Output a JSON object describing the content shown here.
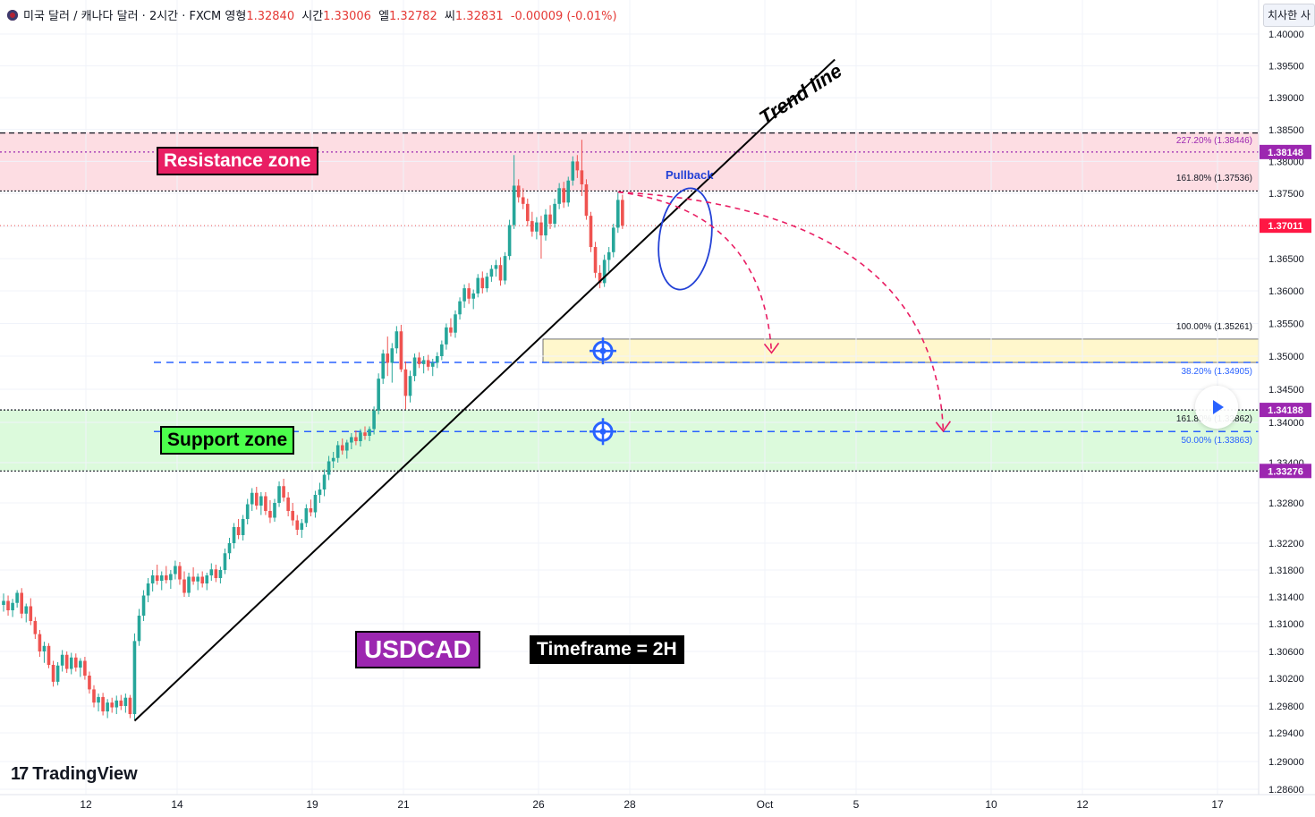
{
  "header": {
    "title": "미국 달러 / 캐나다 달러 · 2시간 · FXCM",
    "open_label": "영형",
    "open": "1.32840",
    "high_label": "시간",
    "high": "1.33006",
    "low_label": "엘",
    "low": "1.32782",
    "close_label": "씨",
    "close": "1.32831",
    "change": "-0.00009 (-0.01%)"
  },
  "corner_label": "치사한 사",
  "logo_text": "TradingView",
  "labels": {
    "resistance": "Resistance zone",
    "support": "Support zone",
    "symbol": "USDCAD",
    "timeframe": "Timeframe = 2H",
    "trend": "Trend line",
    "pullback": "Pullback"
  },
  "colors": {
    "up": "#26a69a",
    "down": "#ef5350",
    "resistance_fill": "#fddde3",
    "support_fill": "#dcfadc",
    "target_fill": "#fff7cc",
    "projection": "#e91e63",
    "accent": "#2962ff",
    "fib_purple": "#9c27b0",
    "label_purple": "#9c27b0",
    "label_red": "#ff1744"
  },
  "chart_data": {
    "type": "candlestick",
    "symbol": "USDCAD",
    "timeframe": "2H",
    "x_ticks": [
      "12",
      "14",
      "19",
      "21",
      "26",
      "28",
      "Oct",
      "5",
      "10",
      "12",
      "17"
    ],
    "y_ticks": [
      "1.40000",
      "1.39500",
      "1.39000",
      "1.38500",
      "1.38000",
      "1.37500",
      "1.37000",
      "1.36500",
      "1.36000",
      "1.35500",
      "1.35000",
      "1.34500",
      "1.34000",
      "1.33400",
      "1.32800",
      "1.32200",
      "1.31800",
      "1.31400",
      "1.31000",
      "1.30600",
      "1.30200",
      "1.29800",
      "1.29400",
      "1.29000",
      "1.28600"
    ],
    "price_labels": [
      {
        "price": 1.38148,
        "text": "1.38148",
        "color": "#9c27b0"
      },
      {
        "price": 1.37011,
        "text": "1.37011",
        "color": "#ff1744"
      },
      {
        "price": 1.34188,
        "text": "1.34188",
        "color": "#9c27b0"
      },
      {
        "price": 1.33276,
        "text": "1.33276",
        "color": "#9c27b0"
      }
    ],
    "zones": [
      {
        "name": "Resistance zone",
        "top": 1.3846,
        "bottom": 1.3754
      },
      {
        "name": "Support zone",
        "top": 1.34188,
        "bottom": 1.33276
      }
    ],
    "fib_levels": [
      {
        "text": "227.20% (1.38446)",
        "price": 1.38446,
        "color": "#9c27b0"
      },
      {
        "text": "161.80% (1.37536)",
        "price": 1.37536,
        "color": "#131722"
      },
      {
        "text": "100.00% (1.35261)",
        "price": 1.35261,
        "color": "#131722"
      },
      {
        "text": "38.20% (1.34905)",
        "price": 1.34905,
        "color": "#2962ff"
      },
      {
        "text": "161.80% (1.33862)",
        "price": 1.33862,
        "color": "#131722"
      },
      {
        "text": "50.00% (1.33863)",
        "price": 1.33863,
        "color": "#2962ff"
      }
    ],
    "candles": [
      [
        1.3128,
        1.3145,
        1.3118,
        1.3134
      ],
      [
        1.3134,
        1.3142,
        1.3112,
        1.312
      ],
      [
        1.312,
        1.3137,
        1.311,
        1.3131
      ],
      [
        1.3131,
        1.315,
        1.3124,
        1.3146
      ],
      [
        1.3146,
        1.3153,
        1.3108,
        1.3115
      ],
      [
        1.3115,
        1.313,
        1.3102,
        1.3126
      ],
      [
        1.3126,
        1.3138,
        1.3098,
        1.3104
      ],
      [
        1.3104,
        1.311,
        1.3078,
        1.3085
      ],
      [
        1.3085,
        1.3091,
        1.3052,
        1.306
      ],
      [
        1.306,
        1.3074,
        1.3043,
        1.3068
      ],
      [
        1.3068,
        1.3072,
        1.3035,
        1.304
      ],
      [
        1.304,
        1.3046,
        1.3008,
        1.3015
      ],
      [
        1.3015,
        1.3044,
        1.301,
        1.3039
      ],
      [
        1.3039,
        1.3062,
        1.303,
        1.3055
      ],
      [
        1.3055,
        1.306,
        1.3028,
        1.3034
      ],
      [
        1.3034,
        1.3058,
        1.3026,
        1.3051
      ],
      [
        1.3051,
        1.3057,
        1.303,
        1.3036
      ],
      [
        1.3036,
        1.305,
        1.3022,
        1.3046
      ],
      [
        1.3046,
        1.3052,
        1.3018,
        1.3024
      ],
      [
        1.3024,
        1.303,
        1.2998,
        1.3004
      ],
      [
        1.3004,
        1.301,
        1.2978,
        1.2985
      ],
      [
        1.2985,
        1.2998,
        1.2972,
        1.2993
      ],
      [
        1.2993,
        1.2999,
        1.2966,
        1.2972
      ],
      [
        1.2972,
        1.299,
        1.2962,
        1.2985
      ],
      [
        1.2985,
        1.2992,
        1.297,
        1.2978
      ],
      [
        1.2978,
        1.2995,
        1.2968,
        1.2988
      ],
      [
        1.2988,
        1.2996,
        1.2974,
        1.298
      ],
      [
        1.298,
        1.2998,
        1.297,
        1.2992
      ],
      [
        1.2992,
        1.2996,
        1.2962,
        1.2968
      ],
      [
        1.2968,
        1.3086,
        1.296,
        1.3075
      ],
      [
        1.3075,
        1.3122,
        1.3068,
        1.3112
      ],
      [
        1.3112,
        1.315,
        1.3104,
        1.3142
      ],
      [
        1.3142,
        1.3168,
        1.3132,
        1.316
      ],
      [
        1.316,
        1.318,
        1.3148,
        1.3172
      ],
      [
        1.3172,
        1.3188,
        1.3158,
        1.3164
      ],
      [
        1.3164,
        1.3178,
        1.315,
        1.3172
      ],
      [
        1.3172,
        1.3186,
        1.316,
        1.3165
      ],
      [
        1.3165,
        1.318,
        1.3152,
        1.3174
      ],
      [
        1.3174,
        1.3194,
        1.3166,
        1.3186
      ],
      [
        1.3186,
        1.3192,
        1.3158,
        1.3166
      ],
      [
        1.3166,
        1.3178,
        1.314,
        1.3146
      ],
      [
        1.3146,
        1.3176,
        1.314,
        1.317
      ],
      [
        1.317,
        1.3184,
        1.3158,
        1.3163
      ],
      [
        1.3163,
        1.3175,
        1.315,
        1.317
      ],
      [
        1.317,
        1.3178,
        1.3154,
        1.316
      ],
      [
        1.316,
        1.3176,
        1.315,
        1.3172
      ],
      [
        1.3172,
        1.319,
        1.3164,
        1.3181
      ],
      [
        1.3181,
        1.3188,
        1.3162,
        1.3168
      ],
      [
        1.3168,
        1.3185,
        1.316,
        1.318
      ],
      [
        1.318,
        1.3212,
        1.3174,
        1.3205
      ],
      [
        1.3205,
        1.3228,
        1.3196,
        1.322
      ],
      [
        1.322,
        1.325,
        1.3212,
        1.3244
      ],
      [
        1.3244,
        1.3256,
        1.3226,
        1.3232
      ],
      [
        1.3232,
        1.3262,
        1.3224,
        1.3256
      ],
      [
        1.3256,
        1.3286,
        1.3248,
        1.3278
      ],
      [
        1.3278,
        1.3302,
        1.3268,
        1.3295
      ],
      [
        1.3295,
        1.3304,
        1.327,
        1.3276
      ],
      [
        1.3276,
        1.3296,
        1.3262,
        1.329
      ],
      [
        1.329,
        1.3296,
        1.3262,
        1.3268
      ],
      [
        1.3268,
        1.3284,
        1.325,
        1.3258
      ],
      [
        1.3258,
        1.3286,
        1.3252,
        1.328
      ],
      [
        1.328,
        1.3312,
        1.3274,
        1.3305
      ],
      [
        1.3305,
        1.3316,
        1.3282,
        1.3288
      ],
      [
        1.3288,
        1.3296,
        1.326,
        1.3268
      ],
      [
        1.3268,
        1.328,
        1.3246,
        1.3254
      ],
      [
        1.3254,
        1.3262,
        1.3232,
        1.324
      ],
      [
        1.324,
        1.3256,
        1.3228,
        1.325
      ],
      [
        1.325,
        1.3278,
        1.3244,
        1.3272
      ],
      [
        1.3272,
        1.3285,
        1.326,
        1.3266
      ],
      [
        1.3266,
        1.3298,
        1.3258,
        1.3292
      ],
      [
        1.3292,
        1.331,
        1.328,
        1.33
      ],
      [
        1.33,
        1.333,
        1.329,
        1.3322
      ],
      [
        1.3322,
        1.335,
        1.3314,
        1.3342
      ],
      [
        1.3342,
        1.3356,
        1.3332,
        1.3347
      ],
      [
        1.3347,
        1.3372,
        1.334,
        1.3366
      ],
      [
        1.3366,
        1.3376,
        1.3352,
        1.3358
      ],
      [
        1.3358,
        1.3374,
        1.3346,
        1.337
      ],
      [
        1.337,
        1.3384,
        1.336,
        1.3378
      ],
      [
        1.3378,
        1.3388,
        1.3366,
        1.3372
      ],
      [
        1.3372,
        1.339,
        1.3364,
        1.3385
      ],
      [
        1.3385,
        1.3394,
        1.3374,
        1.338
      ],
      [
        1.338,
        1.3394,
        1.3372,
        1.339
      ],
      [
        1.339,
        1.3424,
        1.3382,
        1.3418
      ],
      [
        1.3418,
        1.3474,
        1.3412,
        1.3466
      ],
      [
        1.3466,
        1.351,
        1.3458,
        1.3504
      ],
      [
        1.3504,
        1.353,
        1.347,
        1.349
      ],
      [
        1.349,
        1.352,
        1.346,
        1.3512
      ],
      [
        1.3512,
        1.3546,
        1.3504,
        1.3538
      ],
      [
        1.3538,
        1.3548,
        1.3476,
        1.348
      ],
      [
        1.348,
        1.3492,
        1.342,
        1.344
      ],
      [
        1.344,
        1.3478,
        1.343,
        1.347
      ],
      [
        1.347,
        1.3504,
        1.3462,
        1.3498
      ],
      [
        1.3498,
        1.3506,
        1.3482,
        1.3488
      ],
      [
        1.3488,
        1.35,
        1.3474,
        1.3494
      ],
      [
        1.3494,
        1.3502,
        1.3478,
        1.3484
      ],
      [
        1.3484,
        1.3496,
        1.347,
        1.349
      ],
      [
        1.349,
        1.3506,
        1.3482,
        1.35
      ],
      [
        1.35,
        1.3524,
        1.3494,
        1.3518
      ],
      [
        1.3518,
        1.355,
        1.351,
        1.3544
      ],
      [
        1.3544,
        1.3558,
        1.353,
        1.3536
      ],
      [
        1.3536,
        1.357,
        1.3528,
        1.3564
      ],
      [
        1.3564,
        1.359,
        1.3556,
        1.3584
      ],
      [
        1.3584,
        1.361,
        1.3574,
        1.3604
      ],
      [
        1.3604,
        1.3612,
        1.358,
        1.3588
      ],
      [
        1.3588,
        1.3602,
        1.3572,
        1.3596
      ],
      [
        1.3596,
        1.3626,
        1.359,
        1.362
      ],
      [
        1.362,
        1.363,
        1.3596,
        1.3604
      ],
      [
        1.3604,
        1.3628,
        1.3598,
        1.3622
      ],
      [
        1.3622,
        1.364,
        1.3614,
        1.3634
      ],
      [
        1.3634,
        1.3648,
        1.3622,
        1.364
      ],
      [
        1.364,
        1.3652,
        1.3608,
        1.3616
      ],
      [
        1.3616,
        1.366,
        1.361,
        1.3654
      ],
      [
        1.3654,
        1.371,
        1.3648,
        1.3702
      ],
      [
        1.3702,
        1.381,
        1.3696,
        1.3762
      ],
      [
        1.3762,
        1.3772,
        1.3736,
        1.3744
      ],
      [
        1.3744,
        1.3758,
        1.3726,
        1.3734
      ],
      [
        1.3734,
        1.3742,
        1.37,
        1.3708
      ],
      [
        1.3708,
        1.3722,
        1.3684,
        1.3692
      ],
      [
        1.3692,
        1.3714,
        1.368,
        1.3706
      ],
      [
        1.3706,
        1.3716,
        1.365,
        1.3686
      ],
      [
        1.3686,
        1.3726,
        1.3678,
        1.3718
      ],
      [
        1.3718,
        1.3732,
        1.3696,
        1.3704
      ],
      [
        1.3704,
        1.3742,
        1.3698,
        1.3734
      ],
      [
        1.3734,
        1.3766,
        1.3726,
        1.3758
      ],
      [
        1.3758,
        1.3768,
        1.3728,
        1.3736
      ],
      [
        1.3736,
        1.3776,
        1.373,
        1.377
      ],
      [
        1.377,
        1.3808,
        1.3762,
        1.38
      ],
      [
        1.38,
        1.381,
        1.3774,
        1.3786
      ],
      [
        1.3786,
        1.3834,
        1.3746,
        1.3764
      ],
      [
        1.3764,
        1.3772,
        1.371,
        1.3716
      ],
      [
        1.3716,
        1.3722,
        1.366,
        1.3668
      ],
      [
        1.3668,
        1.3676,
        1.362,
        1.3628
      ],
      [
        1.3628,
        1.364,
        1.3604,
        1.3612
      ],
      [
        1.3612,
        1.3656,
        1.3606,
        1.3648
      ],
      [
        1.3648,
        1.3668,
        1.363,
        1.366
      ],
      [
        1.366,
        1.3704,
        1.3652,
        1.3698
      ],
      [
        1.3698,
        1.3752,
        1.369,
        1.374
      ],
      [
        1.374,
        1.3748,
        1.3696,
        1.3701
      ]
    ],
    "projections": [
      {
        "from": [
          136,
          1.3752
        ],
        "to": [
          170,
          1.3505
        ]
      },
      {
        "from": [
          136,
          1.3752
        ],
        "to": [
          208,
          1.3387
        ]
      }
    ],
    "trend_line": {
      "from": [
        29,
        1.2958
      ],
      "to": [
        184,
        1.396
      ]
    }
  }
}
